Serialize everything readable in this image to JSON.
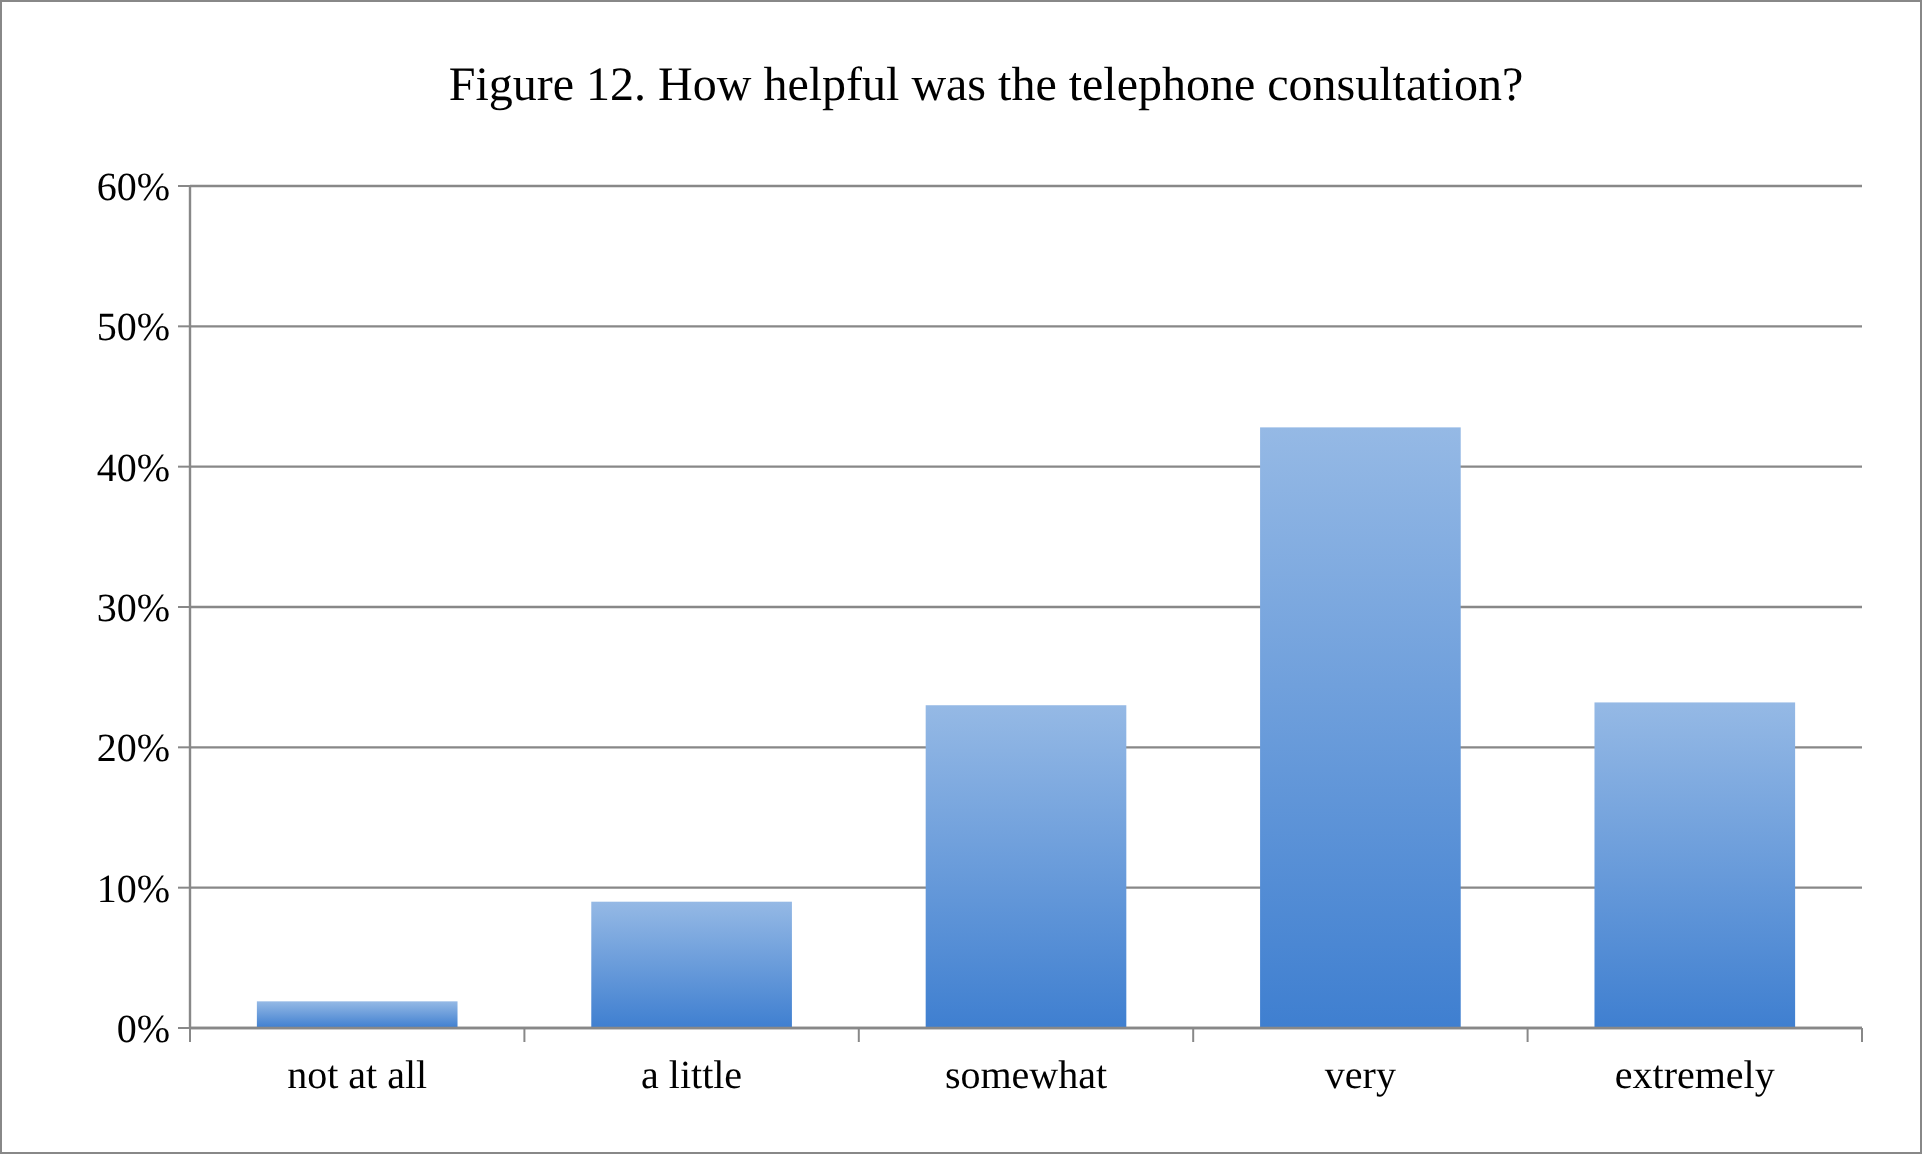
{
  "chart_data": {
    "type": "bar",
    "title": "Figure 12. How helpful was the telephone consultation?",
    "categories": [
      "not at all",
      "a little",
      "somewhat",
      "very",
      "extremely"
    ],
    "values": [
      1.9,
      9.0,
      23.0,
      42.8,
      23.2
    ],
    "color": "#3f7fd0",
    "ylim": [
      0,
      60
    ],
    "yticks": [
      {
        "value": 0,
        "label": "0%"
      },
      {
        "value": 10,
        "label": "10%"
      },
      {
        "value": 20,
        "label": "20%"
      },
      {
        "value": 30,
        "label": "30%"
      },
      {
        "value": 40,
        "label": "40%"
      },
      {
        "value": 50,
        "label": "50%"
      },
      {
        "value": 60,
        "label": "60%"
      }
    ],
    "grid": "y"
  }
}
